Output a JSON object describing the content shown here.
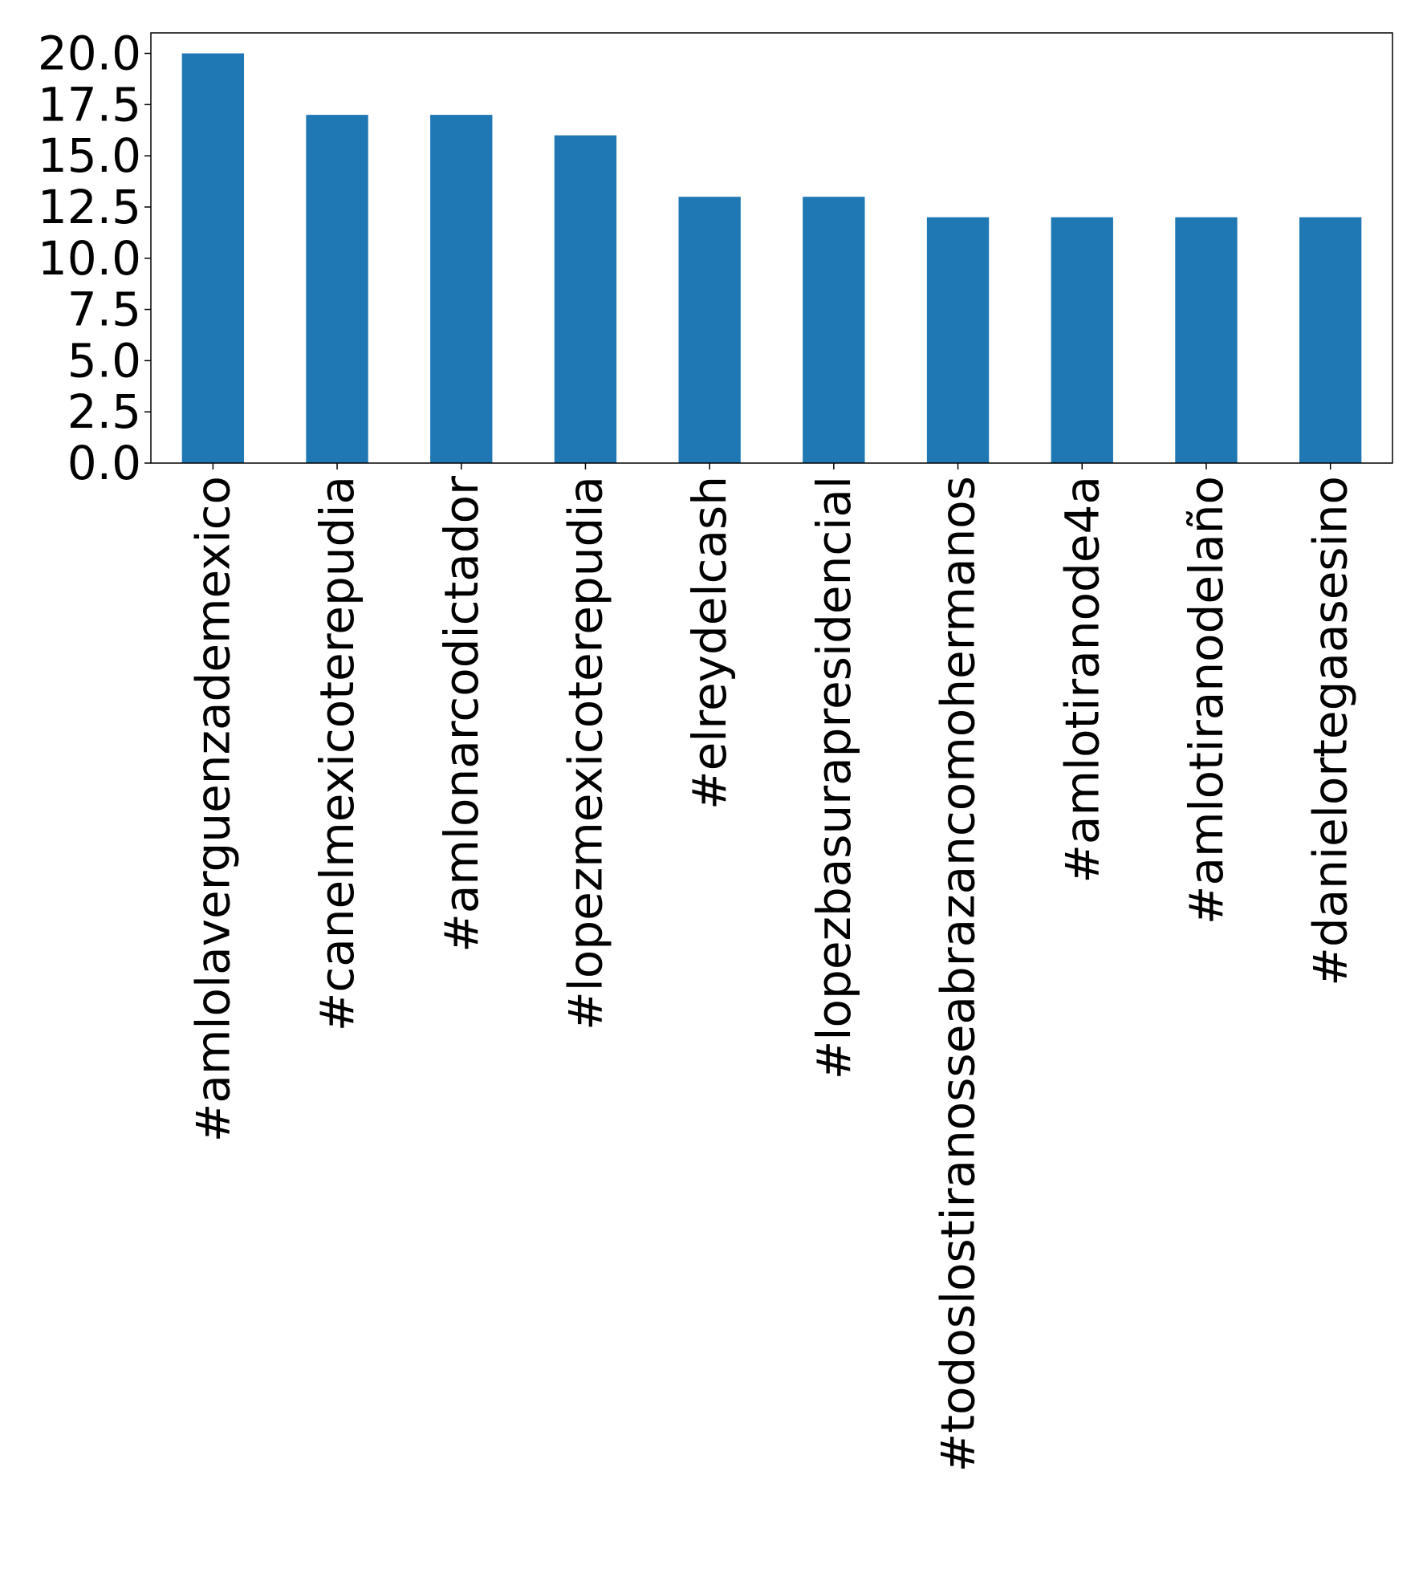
{
  "chart_data": {
    "type": "bar",
    "title": "",
    "xlabel": "",
    "ylabel": "",
    "categories": [
      "#amlolaverguenzademexico",
      "#canelmexicoterepudia",
      "#amlonarcodictador",
      "#lopezmexicoterepudia",
      "#elreydelcash",
      "#lopezbasurapresidencial",
      "#todoslostiranosseabrazancomohermanos",
      "#amlotiranode4a",
      "#amlotiranodelaño",
      "#danielortegaasesino"
    ],
    "values": [
      20,
      17,
      17,
      16,
      13,
      13,
      12,
      12,
      12,
      12
    ],
    "ylim": [
      0,
      21
    ],
    "yticks": [
      0.0,
      2.5,
      5.0,
      7.5,
      10.0,
      12.5,
      15.0,
      17.5,
      20.0
    ],
    "ytick_labels": [
      "0.0",
      "2.5",
      "5.0",
      "7.5",
      "10.0",
      "12.5",
      "15.0",
      "17.5",
      "20.0"
    ],
    "grid": false,
    "legend": "none",
    "bar_color": "#1f77b4"
  }
}
